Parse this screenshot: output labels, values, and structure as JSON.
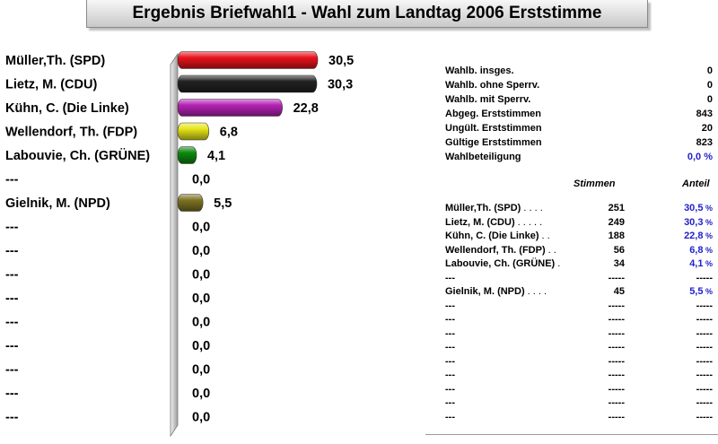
{
  "title": "Ergebnis Briefwahl1 -  Wahl zum Landtag 2006 Erststimme",
  "chart_data": {
    "type": "bar",
    "orientation": "horizontal",
    "categories": [
      "Müller,Th. (SPD)",
      "Lietz, M. (CDU)",
      "Kühn, C. (Die Linke)",
      "Wellendorf, Th. (FDP)",
      "Labouvie, Ch. (GRÜNE)",
      "---",
      "Gielnik, M. (NPD)",
      "---",
      "---",
      "---",
      "---",
      "---",
      "---",
      "---",
      "---",
      "---"
    ],
    "values": [
      30.5,
      30.3,
      22.8,
      6.8,
      4.1,
      0.0,
      5.5,
      0.0,
      0.0,
      0.0,
      0.0,
      0.0,
      0.0,
      0.0,
      0.0,
      0.0
    ],
    "value_labels": [
      "30,5",
      "30,3",
      "22,8",
      "6,8",
      "4,1",
      "0,0",
      "5,5",
      "0,0",
      "0,0",
      "0,0",
      "0,0",
      "0,0",
      "0,0",
      "0,0",
      "0,0",
      "0,0"
    ],
    "colors": [
      "#e8141c",
      "#222222",
      "#b522b5",
      "#e6e619",
      "#0d8a0d",
      "#9a9a9a",
      "#7d7323",
      "#9a9a9a",
      "#9a9a9a",
      "#9a9a9a",
      "#9a9a9a",
      "#9a9a9a",
      "#9a9a9a",
      "#9a9a9a",
      "#9a9a9a",
      "#9a9a9a"
    ],
    "xlim": [
      0,
      30.5
    ]
  },
  "stats": [
    {
      "label": "Wahlb. insges.",
      "value": "0",
      "blue": false
    },
    {
      "label": "Wahlb. ohne Sperrv.",
      "value": "0",
      "blue": false
    },
    {
      "label": "Wahlb. mit Sperrv.",
      "value": "0",
      "blue": false
    },
    {
      "label": "Abgeg. Erststimmen",
      "value": "843",
      "blue": false
    },
    {
      "label": "Ungült. Erststimmen",
      "value": "20",
      "blue": false
    },
    {
      "label": "Gültige Erststimmen",
      "value": "823",
      "blue": false
    },
    {
      "label": "Wahlbeteiligung",
      "value": "0,0 %",
      "blue": true
    }
  ],
  "results_header": {
    "stimmen": "Stimmen",
    "anteil": "Anteil"
  },
  "results": [
    {
      "name": "Müller,Th. (SPD)",
      "dots": " .  .  .  .",
      "votes": "251",
      "pct": "30,5",
      "sign": "%"
    },
    {
      "name": "Lietz, M. (CDU)",
      "dots": " .  .  .  .  .",
      "votes": "249",
      "pct": "30,3",
      "sign": "%"
    },
    {
      "name": "Kühn, C. (Die Linke)",
      "dots": " .  .",
      "votes": "188",
      "pct": "22,8",
      "sign": "%"
    },
    {
      "name": "Wellendorf, Th. (FDP)",
      "dots": " .  .",
      "votes": "56",
      "pct": "6,8",
      "sign": "%"
    },
    {
      "name": "Labouvie, Ch. (GRÜNE)",
      "dots": " .",
      "votes": "34",
      "pct": "4,1",
      "sign": "%"
    },
    {
      "name": "---",
      "dots": "",
      "votes": "-----",
      "pct": "-----",
      "sign": ""
    },
    {
      "name": "Gielnik, M. (NPD)",
      "dots": " .  .  .  .",
      "votes": "45",
      "pct": "5,5",
      "sign": "%"
    },
    {
      "name": "---",
      "dots": "",
      "votes": "-----",
      "pct": "-----",
      "sign": ""
    },
    {
      "name": "---",
      "dots": "",
      "votes": "-----",
      "pct": "-----",
      "sign": ""
    },
    {
      "name": "---",
      "dots": "",
      "votes": "-----",
      "pct": "-----",
      "sign": ""
    },
    {
      "name": "---",
      "dots": "",
      "votes": "-----",
      "pct": "-----",
      "sign": ""
    },
    {
      "name": "---",
      "dots": "",
      "votes": "-----",
      "pct": "-----",
      "sign": ""
    },
    {
      "name": "---",
      "dots": "",
      "votes": "-----",
      "pct": "-----",
      "sign": ""
    },
    {
      "name": "---",
      "dots": "",
      "votes": "-----",
      "pct": "-----",
      "sign": ""
    },
    {
      "name": "---",
      "dots": "",
      "votes": "-----",
      "pct": "-----",
      "sign": ""
    },
    {
      "name": "---",
      "dots": "",
      "votes": "-----",
      "pct": "-----",
      "sign": ""
    }
  ]
}
